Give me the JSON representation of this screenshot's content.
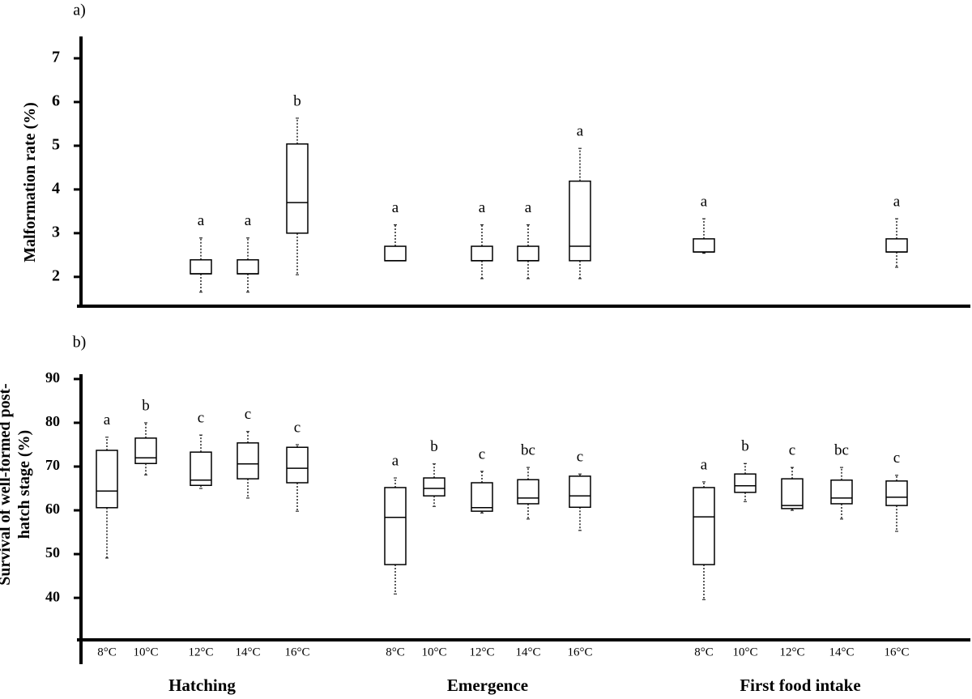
{
  "chart_data": [
    {
      "type": "box",
      "panel_label": "a)",
      "y_label": [
        "Malformation rate (%)"
      ],
      "ylim": [
        1.33,
        7.5
      ],
      "yticks": [
        2,
        3,
        4,
        5,
        6,
        7
      ],
      "min": [
        null,
        null,
        1.65,
        1.65,
        2.05,
        2.37,
        null,
        1.96,
        1.96,
        1.96,
        2.54,
        null,
        null,
        null,
        2.22
      ],
      "q1": [
        null,
        null,
        2.07,
        2.07,
        3.0,
        2.37,
        null,
        2.37,
        2.37,
        2.37,
        2.57,
        null,
        null,
        null,
        2.57
      ],
      "median": [
        null,
        null,
        2.07,
        2.07,
        3.7,
        2.37,
        null,
        2.37,
        2.37,
        2.7,
        2.57,
        null,
        null,
        null,
        2.57
      ],
      "q3": [
        null,
        null,
        2.39,
        2.39,
        5.04,
        2.7,
        null,
        2.7,
        2.7,
        4.19,
        2.87,
        null,
        null,
        null,
        2.87
      ],
      "max": [
        null,
        null,
        2.89,
        2.89,
        5.63,
        3.19,
        null,
        3.19,
        3.19,
        4.94,
        3.33,
        null,
        null,
        null,
        3.33
      ],
      "letters": [
        null,
        null,
        "a",
        "a",
        "b",
        "a",
        null,
        "a",
        "a",
        "a",
        "a",
        null,
        null,
        null,
        "a"
      ]
    },
    {
      "type": "box",
      "panel_label": "b)",
      "y_label": [
        "Survival of well-formed post-",
        "hatch stage (%)"
      ],
      "ylim": [
        30.4,
        91.1
      ],
      "yticks": [
        40,
        50,
        60,
        70,
        80,
        90
      ],
      "categories": [
        "8°C",
        "10°C",
        "12°C",
        "14°C",
        "16°C",
        "8°C",
        "10°C",
        "12°C",
        "14°C",
        "16°C",
        "8°C",
        "10°C",
        "12°C",
        "14°C",
        "16°C"
      ],
      "x_groups": [
        "Hatching",
        "Emergence",
        "First food intake"
      ],
      "min": [
        49.1,
        68.1,
        65.0,
        62.8,
        59.8,
        40.9,
        60.9,
        59.4,
        58.0,
        55.4,
        39.6,
        62.0,
        60.0,
        58.0,
        55.2
      ],
      "q1": [
        60.6,
        70.7,
        65.7,
        67.2,
        66.3,
        47.6,
        63.3,
        59.8,
        61.5,
        60.7,
        47.6,
        64.1,
        60.4,
        61.5,
        61.1
      ],
      "median": [
        64.4,
        72.0,
        66.9,
        70.6,
        69.6,
        58.4,
        65.0,
        60.6,
        62.8,
        63.3,
        58.5,
        65.6,
        61.1,
        62.8,
        63.0
      ],
      "q3": [
        73.7,
        76.5,
        73.3,
        75.4,
        74.4,
        65.2,
        67.4,
        66.3,
        67.0,
        67.8,
        65.2,
        68.3,
        67.2,
        66.9,
        66.7
      ],
      "max": [
        76.7,
        80.0,
        77.2,
        78.0,
        75.0,
        67.4,
        70.6,
        68.9,
        69.8,
        68.3,
        66.5,
        70.7,
        69.8,
        69.8,
        68.0
      ],
      "letters": [
        "a",
        "b",
        "c",
        "c",
        "c",
        "a",
        "b",
        "c",
        "bc",
        "c",
        "a",
        "b",
        "c",
        "bc",
        "c"
      ]
    }
  ]
}
